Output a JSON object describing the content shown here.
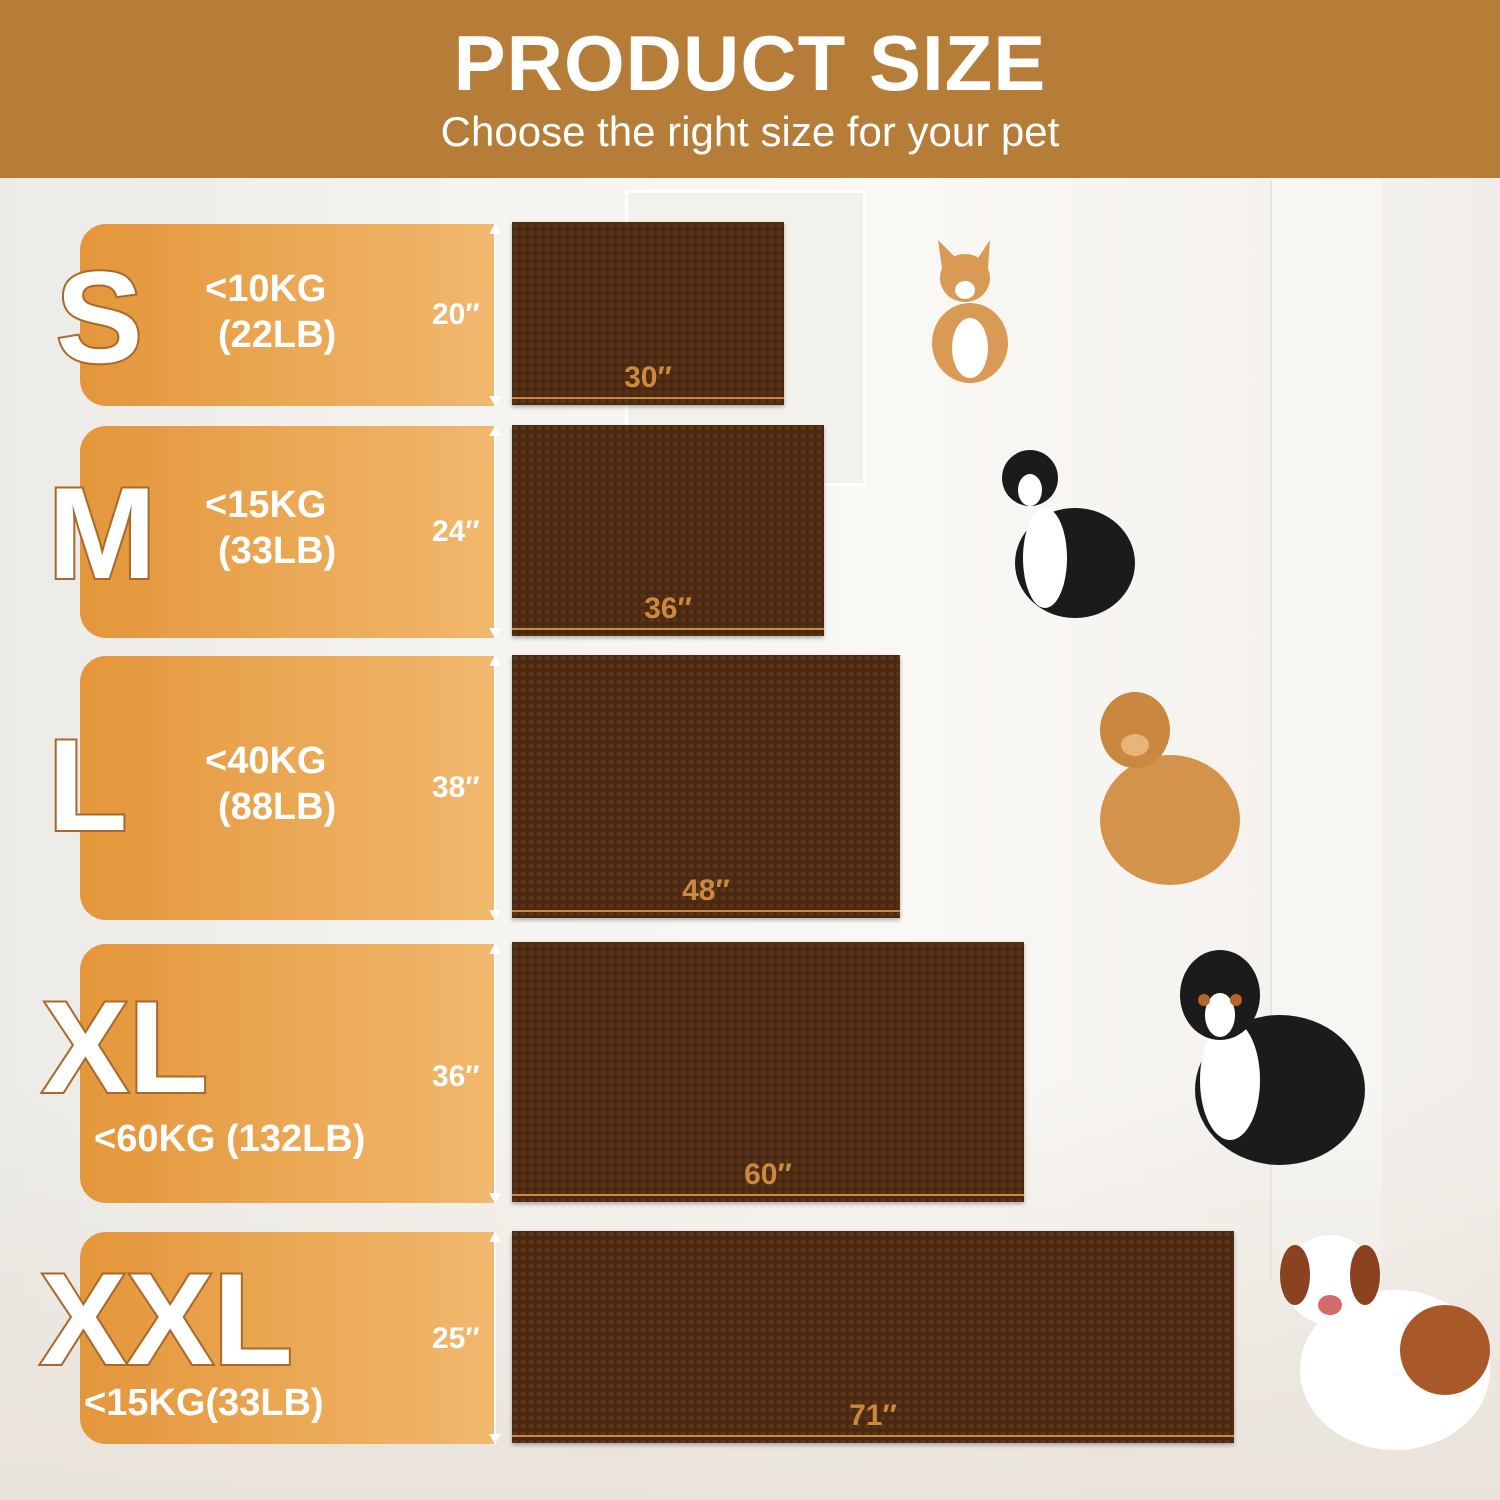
{
  "header": {
    "title": "PRODUCT SIZE",
    "subtitle": "Choose the right size for your pet"
  },
  "colors": {
    "header": "#b57d38",
    "panel": "#e4963a",
    "mat": "#4a2812",
    "accent": "#c98a3e"
  },
  "sizes": [
    {
      "letter": "S",
      "weight_kg": "<10KG",
      "weight_lb": "(22LB)",
      "height": "20″",
      "width": "30″",
      "dog": "corgi-icon"
    },
    {
      "letter": "M",
      "weight_kg": "<15KG",
      "weight_lb": "(33LB)",
      "height": "24″",
      "width": "36″",
      "dog": "border-collie-icon"
    },
    {
      "letter": "L",
      "weight_kg": "<40KG",
      "weight_lb": "(88LB)",
      "height": "38″",
      "width": "48″",
      "dog": "golden-retriever-icon"
    },
    {
      "letter": "XL",
      "weight": "<60KG (132LB)",
      "height": "36″",
      "width": "60″",
      "dog": "bernese-mountain-dog-icon"
    },
    {
      "letter": "XXL",
      "weight": "<15KG(33LB)",
      "height": "25″",
      "width": "71″",
      "dog": "saint-bernard-icon"
    }
  ]
}
